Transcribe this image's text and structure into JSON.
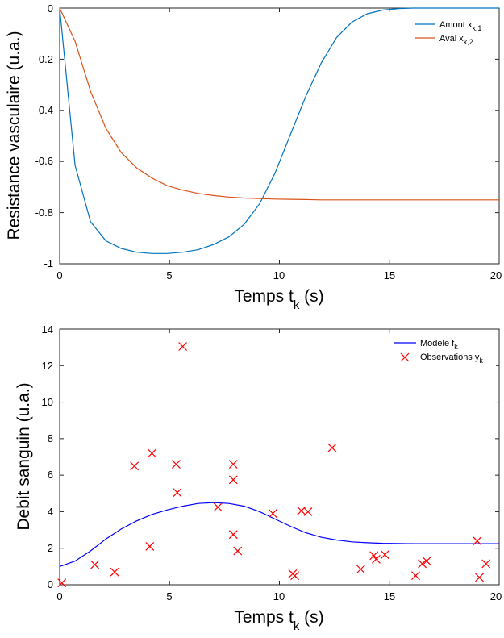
{
  "chart_data": [
    {
      "type": "line",
      "xlabel": "Temps t",
      "xlabel_sub": "k",
      "xlabel_unit": " (s)",
      "ylabel": "Resistance vasculaire (u.a.)",
      "xlim": [
        0,
        20
      ],
      "ylim": [
        -1,
        0
      ],
      "xticks": [
        "0",
        "5",
        "10",
        "15",
        "20"
      ],
      "yticks": [
        "-1",
        "-0.8",
        "-0.6",
        "-0.4",
        "-0.2",
        "0"
      ],
      "legend_position": "top-right",
      "series": [
        {
          "name": "Amont x",
          "name_sub": "k,1",
          "color": "#0072bd",
          "x": [
            0,
            0.7,
            1.4,
            2.1,
            2.8,
            3.5,
            4.2,
            4.9,
            5.6,
            6.3,
            7.0,
            7.7,
            8.4,
            9.1,
            9.8,
            10.5,
            11.2,
            11.9,
            12.6,
            13.3,
            14.0,
            14.7,
            15.4,
            16.1,
            16.8,
            17.5,
            18.2,
            18.9,
            20.0
          ],
          "values": [
            0,
            -0.615,
            -0.835,
            -0.91,
            -0.94,
            -0.955,
            -0.96,
            -0.96,
            -0.955,
            -0.945,
            -0.925,
            -0.895,
            -0.845,
            -0.765,
            -0.645,
            -0.495,
            -0.345,
            -0.215,
            -0.115,
            -0.055,
            -0.022,
            -0.008,
            -0.002,
            0,
            0,
            0,
            0,
            0,
            0
          ]
        },
        {
          "name": "Aval x",
          "name_sub": "k,2",
          "color": "#d95319",
          "x": [
            0,
            0.7,
            1.4,
            2.1,
            2.8,
            3.5,
            4.2,
            4.9,
            5.6,
            6.3,
            7.0,
            7.7,
            8.4,
            9.1,
            9.8,
            10.5,
            11.2,
            11.9,
            12.6,
            13.3,
            14.0,
            14.7,
            15.4,
            16.1,
            16.8,
            17.5,
            18.2,
            18.9,
            20.0
          ],
          "values": [
            0,
            -0.13,
            -0.325,
            -0.47,
            -0.565,
            -0.625,
            -0.665,
            -0.695,
            -0.712,
            -0.725,
            -0.733,
            -0.739,
            -0.743,
            -0.745,
            -0.747,
            -0.748,
            -0.749,
            -0.75,
            -0.75,
            -0.75,
            -0.75,
            -0.75,
            -0.75,
            -0.75,
            -0.75,
            -0.75,
            -0.75,
            -0.75,
            -0.75
          ]
        }
      ]
    },
    {
      "type": "scatter",
      "xlabel": "Temps t",
      "xlabel_sub": "k",
      "xlabel_unit": " (s)",
      "ylabel": "Debit sanguin (u.a.)",
      "xlim": [
        0,
        20
      ],
      "ylim": [
        0,
        14
      ],
      "xticks": [
        "0",
        "5",
        "10",
        "15",
        "20"
      ],
      "yticks": [
        "0",
        "2",
        "4",
        "6",
        "8",
        "10",
        "12",
        "14"
      ],
      "legend_position": "top-right",
      "model": {
        "name": "Modele f",
        "name_sub": "k",
        "color": "#0000ff",
        "x": [
          0,
          0.7,
          1.4,
          2.1,
          2.8,
          3.5,
          4.2,
          4.9,
          5.6,
          6.3,
          7.0,
          7.7,
          8.4,
          9.1,
          9.8,
          10.5,
          11.2,
          11.9,
          12.6,
          13.3,
          14.0,
          14.7,
          15.4,
          16.1,
          16.8,
          17.5,
          18.2,
          18.9,
          20.0
        ],
        "values": [
          1.0,
          1.3,
          1.85,
          2.5,
          3.05,
          3.5,
          3.85,
          4.1,
          4.3,
          4.45,
          4.5,
          4.45,
          4.3,
          4.0,
          3.6,
          3.2,
          2.85,
          2.6,
          2.45,
          2.35,
          2.3,
          2.27,
          2.26,
          2.25,
          2.25,
          2.25,
          2.25,
          2.25,
          2.25
        ]
      },
      "observations": {
        "name": "Observations y",
        "name_sub": "k",
        "color": "#ff0000",
        "points": [
          [
            0.1,
            0.1
          ],
          [
            1.6,
            1.1
          ],
          [
            2.5,
            0.7
          ],
          [
            3.4,
            6.5
          ],
          [
            4.1,
            2.1
          ],
          [
            4.2,
            7.2
          ],
          [
            5.3,
            6.6
          ],
          [
            5.35,
            5.05
          ],
          [
            5.6,
            13.05
          ],
          [
            7.2,
            4.25
          ],
          [
            7.9,
            6.6
          ],
          [
            7.9,
            5.75
          ],
          [
            7.9,
            2.75
          ],
          [
            8.1,
            1.85
          ],
          [
            9.7,
            3.9
          ],
          [
            10.6,
            0.6
          ],
          [
            10.7,
            0.5
          ],
          [
            11.0,
            4.05
          ],
          [
            11.3,
            4.0
          ],
          [
            12.4,
            7.5
          ],
          [
            13.7,
            0.85
          ],
          [
            14.3,
            1.6
          ],
          [
            14.4,
            1.4
          ],
          [
            14.8,
            1.65
          ],
          [
            16.2,
            0.5
          ],
          [
            16.5,
            1.15
          ],
          [
            16.7,
            1.3
          ],
          [
            19.0,
            2.4
          ],
          [
            19.1,
            0.4
          ],
          [
            19.4,
            1.15
          ]
        ]
      }
    }
  ]
}
